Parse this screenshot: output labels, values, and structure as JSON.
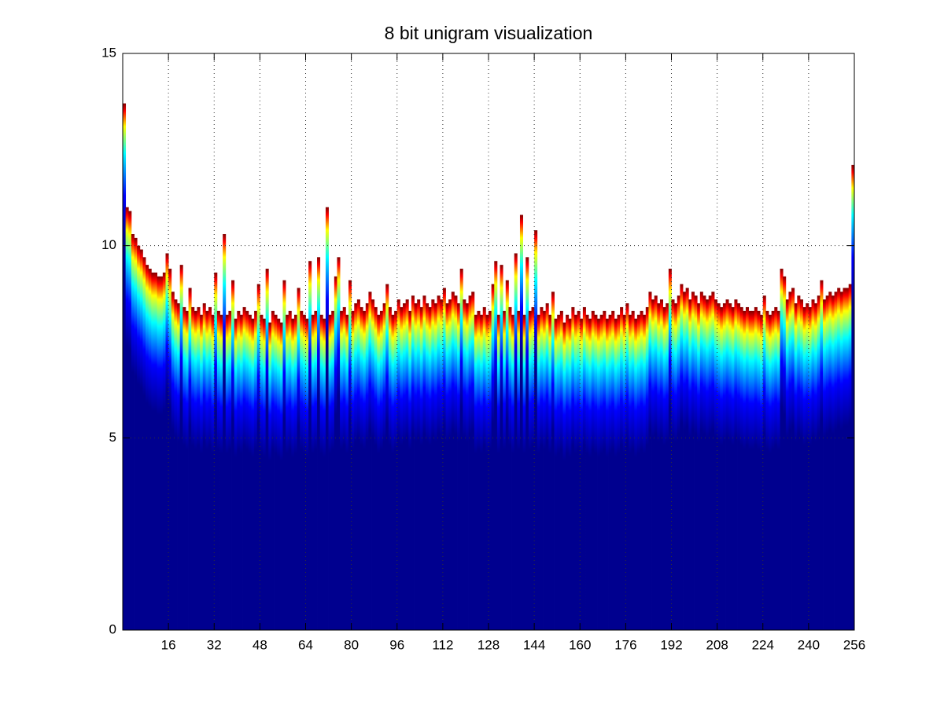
{
  "chart_data": {
    "type": "bar",
    "title": "8 bit unigram visualization",
    "x": [
      1,
      2,
      3,
      4,
      5,
      6,
      7,
      8,
      9,
      10,
      11,
      12,
      13,
      14,
      15,
      16,
      17,
      18,
      19,
      20,
      21,
      22,
      23,
      24,
      25,
      26,
      27,
      28,
      29,
      30,
      31,
      32,
      33,
      34,
      35,
      36,
      37,
      38,
      39,
      40,
      41,
      42,
      43,
      44,
      45,
      46,
      47,
      48,
      49,
      50,
      51,
      52,
      53,
      54,
      55,
      56,
      57,
      58,
      59,
      60,
      61,
      62,
      63,
      64,
      65,
      66,
      67,
      68,
      69,
      70,
      71,
      72,
      73,
      74,
      75,
      76,
      77,
      78,
      79,
      80,
      81,
      82,
      83,
      84,
      85,
      86,
      87,
      88,
      89,
      90,
      91,
      92,
      93,
      94,
      95,
      96,
      97,
      98,
      99,
      100,
      101,
      102,
      103,
      104,
      105,
      106,
      107,
      108,
      109,
      110,
      111,
      112,
      113,
      114,
      115,
      116,
      117,
      118,
      119,
      120,
      121,
      122,
      123,
      124,
      125,
      126,
      127,
      128,
      129,
      130,
      131,
      132,
      133,
      134,
      135,
      136,
      137,
      138,
      139,
      140,
      141,
      142,
      143,
      144,
      145,
      146,
      147,
      148,
      149,
      150,
      151,
      152,
      153,
      154,
      155,
      156,
      157,
      158,
      159,
      160,
      161,
      162,
      163,
      164,
      165,
      166,
      167,
      168,
      169,
      170,
      171,
      172,
      173,
      174,
      175,
      176,
      177,
      178,
      179,
      180,
      181,
      182,
      183,
      184,
      185,
      186,
      187,
      188,
      189,
      190,
      191,
      192,
      193,
      194,
      195,
      196,
      197,
      198,
      199,
      200,
      201,
      202,
      203,
      204,
      205,
      206,
      207,
      208,
      209,
      210,
      211,
      212,
      213,
      214,
      215,
      216,
      217,
      218,
      219,
      220,
      221,
      222,
      223,
      224,
      225,
      226,
      227,
      228,
      229,
      230,
      231,
      232,
      233,
      234,
      235,
      236,
      237,
      238,
      239,
      240,
      241,
      242,
      243,
      244,
      245,
      246,
      247,
      248,
      249,
      250,
      251,
      252,
      253,
      254,
      255,
      256
    ],
    "values": [
      13.7,
      11.0,
      10.9,
      10.3,
      10.2,
      10.0,
      9.9,
      9.7,
      9.5,
      9.4,
      9.3,
      9.3,
      9.2,
      9.2,
      9.3,
      9.8,
      9.4,
      8.8,
      8.6,
      8.5,
      9.5,
      8.4,
      8.3,
      8.9,
      8.4,
      8.3,
      8.4,
      8.2,
      8.5,
      8.3,
      8.4,
      8.2,
      9.3,
      8.3,
      8.2,
      10.3,
      8.2,
      8.3,
      9.1,
      8.1,
      8.3,
      8.2,
      8.4,
      8.3,
      8.2,
      8.1,
      8.3,
      9.0,
      8.2,
      8.1,
      9.4,
      8.0,
      8.3,
      8.2,
      8.1,
      8.0,
      9.1,
      8.2,
      8.3,
      8.1,
      8.2,
      8.9,
      8.3,
      8.2,
      8.1,
      9.6,
      8.2,
      8.3,
      9.7,
      8.2,
      8.1,
      11.0,
      8.2,
      8.3,
      9.2,
      9.7,
      8.3,
      8.4,
      8.2,
      9.1,
      8.3,
      8.5,
      8.6,
      8.4,
      8.3,
      8.5,
      8.8,
      8.6,
      8.4,
      8.2,
      8.3,
      8.5,
      9.0,
      8.4,
      8.2,
      8.3,
      8.6,
      8.4,
      8.5,
      8.6,
      8.3,
      8.7,
      8.5,
      8.6,
      8.4,
      8.7,
      8.5,
      8.4,
      8.6,
      8.5,
      8.7,
      8.6,
      8.9,
      8.5,
      8.6,
      8.8,
      8.7,
      8.5,
      9.4,
      8.6,
      8.5,
      8.7,
      8.8,
      8.2,
      8.3,
      8.2,
      8.4,
      8.2,
      8.3,
      9.0,
      9.6,
      8.2,
      9.5,
      8.3,
      9.1,
      8.4,
      8.2,
      9.8,
      8.3,
      10.8,
      8.2,
      9.7,
      8.3,
      8.4,
      10.4,
      8.2,
      8.4,
      8.3,
      8.5,
      8.2,
      8.8,
      8.1,
      8.2,
      8.3,
      8.0,
      8.2,
      8.1,
      8.4,
      8.2,
      8.3,
      8.1,
      8.4,
      8.2,
      8.1,
      8.3,
      8.2,
      8.1,
      8.2,
      8.3,
      8.1,
      8.2,
      8.3,
      8.1,
      8.2,
      8.4,
      8.2,
      8.5,
      8.2,
      8.3,
      8.1,
      8.2,
      8.3,
      8.2,
      8.4,
      8.8,
      8.6,
      8.7,
      8.5,
      8.6,
      8.4,
      8.5,
      9.4,
      8.6,
      8.5,
      8.7,
      9.0,
      8.8,
      8.9,
      8.6,
      8.8,
      8.7,
      8.5,
      8.8,
      8.7,
      8.6,
      8.7,
      8.8,
      8.6,
      8.5,
      8.4,
      8.5,
      8.6,
      8.5,
      8.4,
      8.6,
      8.5,
      8.4,
      8.3,
      8.4,
      8.3,
      8.3,
      8.4,
      8.3,
      8.2,
      8.7,
      8.3,
      8.2,
      8.3,
      8.4,
      8.3,
      9.4,
      9.2,
      8.6,
      8.8,
      8.9,
      8.5,
      8.7,
      8.6,
      8.4,
      8.5,
      8.4,
      8.6,
      8.5,
      8.7,
      9.1,
      8.6,
      8.7,
      8.8,
      8.7,
      8.8,
      8.9,
      8.8,
      8.9,
      8.9,
      9.0,
      12.1
    ],
    "colormap": [
      "#00008f",
      "#0000ff",
      "#00ffff",
      "#ffff00",
      "#ff0000",
      "#800000"
    ],
    "xlim": [
      0,
      256
    ],
    "xticks": [
      16,
      32,
      48,
      64,
      80,
      96,
      112,
      128,
      144,
      160,
      176,
      192,
      208,
      224,
      240,
      256
    ],
    "ylim": [
      0,
      15
    ],
    "yticks": [
      0,
      5,
      10,
      15
    ],
    "grid": true
  }
}
